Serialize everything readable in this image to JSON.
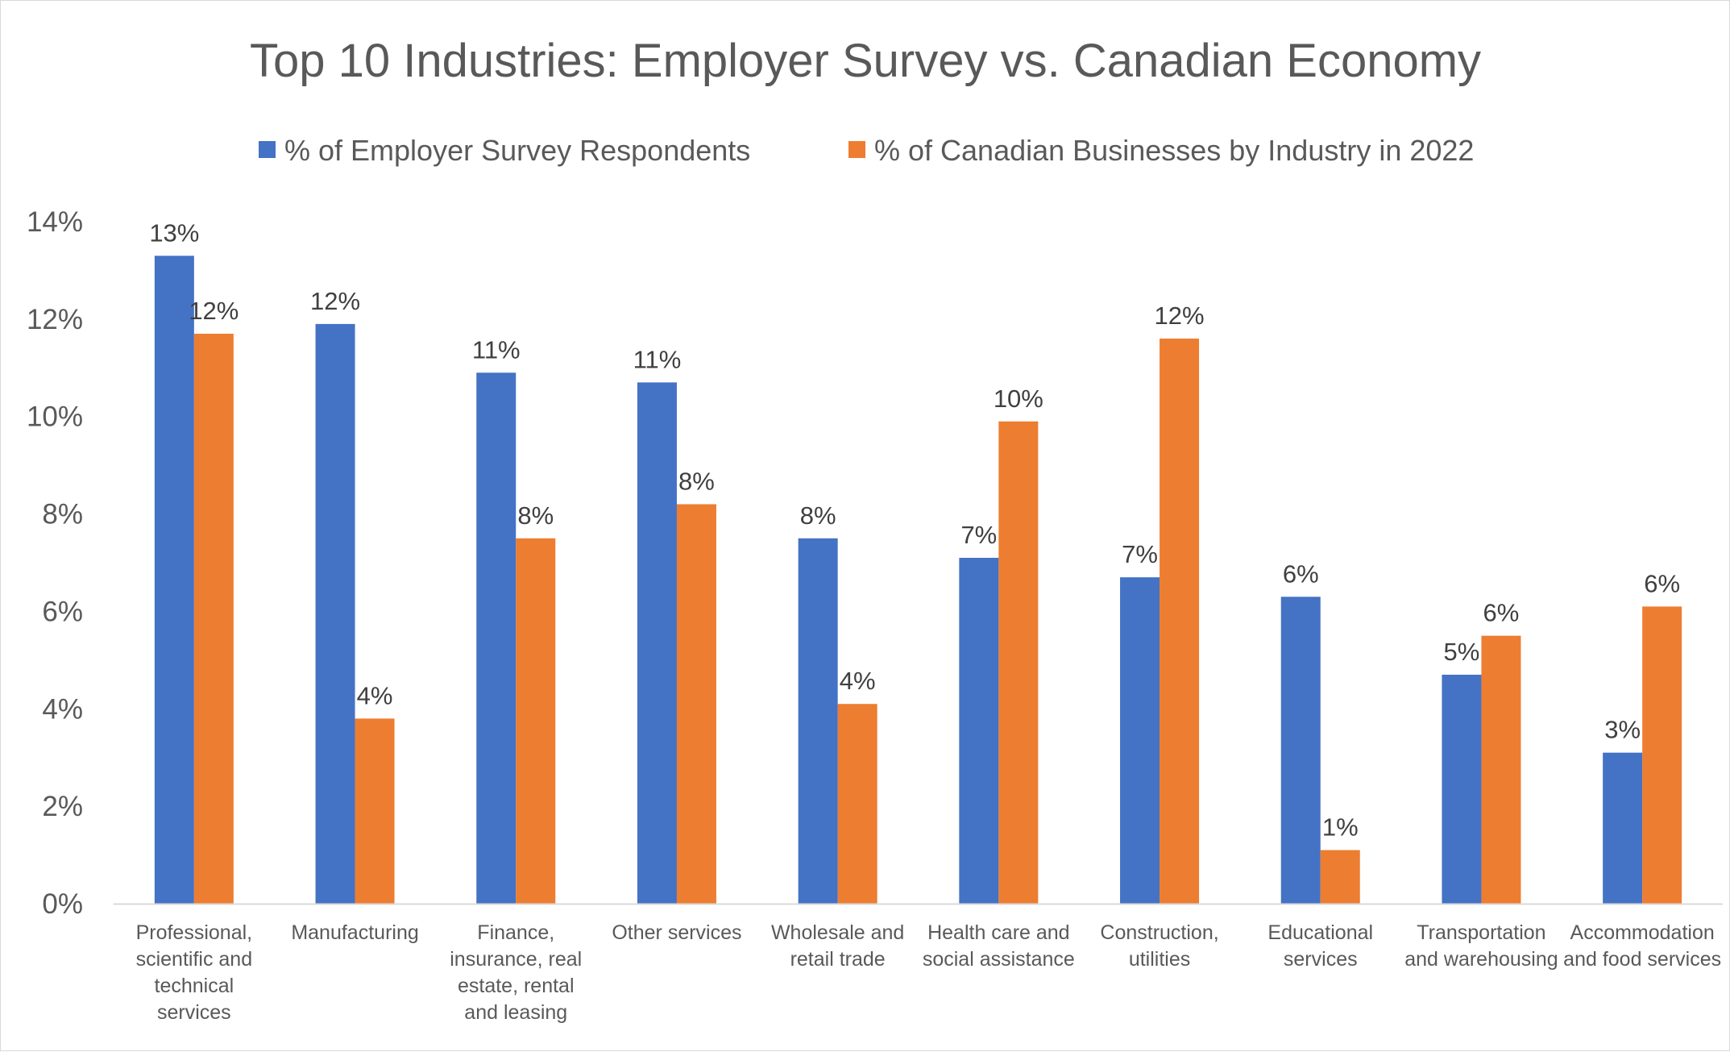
{
  "chart_data": {
    "type": "bar",
    "title": "Top 10 Industries: Employer Survey vs. Canadian Economy",
    "categories": [
      "Professional, scientific and technical services",
      "Manufacturing",
      "Finance, insurance, real estate, rental and leasing",
      "Other services",
      "Wholesale and retail trade",
      "Health care and social assistance",
      "Construction, utilities",
      "Educational services",
      "Transportation and warehousing",
      "Accommodation and food services"
    ],
    "category_lines": [
      [
        "Professional,",
        "scientific and",
        "technical",
        "services"
      ],
      [
        "Manufacturing"
      ],
      [
        "Finance,",
        "insurance, real",
        "estate, rental",
        "and leasing"
      ],
      [
        "Other services"
      ],
      [
        "Wholesale and",
        "retail trade"
      ],
      [
        "Health care and",
        "social assistance"
      ],
      [
        "Construction,",
        "utilities"
      ],
      [
        "Educational",
        "services"
      ],
      [
        "Transportation",
        "and warehousing"
      ],
      [
        "Accommodation",
        "and food services"
      ]
    ],
    "series": [
      {
        "name": "% of Employer Survey Respondents",
        "color": "#4472C4",
        "values": [
          13.3,
          11.9,
          10.9,
          10.7,
          7.5,
          7.1,
          6.7,
          6.3,
          4.7,
          3.1
        ],
        "labels": [
          "13%",
          "12%",
          "11%",
          "11%",
          "8%",
          "7%",
          "7%",
          "6%",
          "5%",
          "3%"
        ]
      },
      {
        "name": "% of Canadian Businesses by Industry in 2022",
        "color": "#ED7D31",
        "values": [
          11.7,
          3.8,
          7.5,
          8.2,
          4.1,
          9.9,
          11.6,
          1.1,
          5.5,
          6.1
        ],
        "labels": [
          "12%",
          "4%",
          "8%",
          "8%",
          "4%",
          "10%",
          "12%",
          "1%",
          "6%",
          "6%"
        ]
      }
    ],
    "y_ticks": [
      "0%",
      "2%",
      "4%",
      "6%",
      "8%",
      "10%",
      "12%",
      "14%"
    ],
    "ylim": [
      0,
      14
    ],
    "y_step": 2,
    "grid": false,
    "legend_position": "top"
  }
}
